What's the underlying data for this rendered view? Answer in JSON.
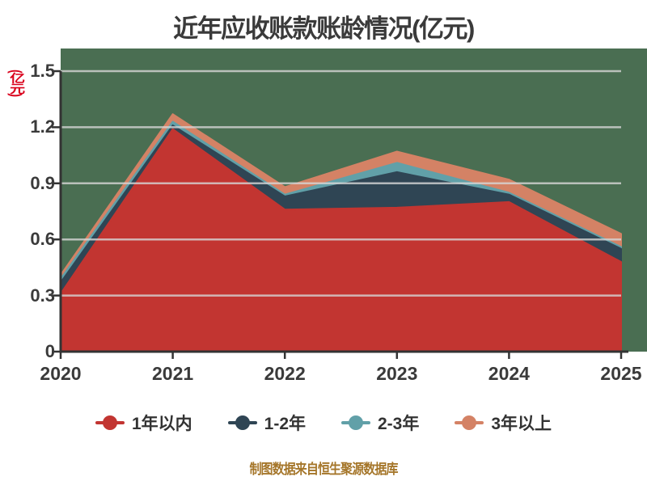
{
  "title": "近年应收账款账龄情况(亿元)",
  "y_axis_unit": "(亿元)",
  "footer": "制图数据来自恒生聚源数据库",
  "colors": {
    "plot_background": "#4a6e52",
    "grid_line": "#d6d6d6",
    "axis": "#333333",
    "title_text": "#3a3a3a",
    "tick_text": "#3a3a3a",
    "unit_text": "#d9001b",
    "footer_text": "#a5762a"
  },
  "chart_data": {
    "type": "area",
    "stacked": true,
    "title": "近年应收账款账龄情况(亿元)",
    "xlabel": "",
    "ylabel": "(亿元)",
    "x": [
      "2020",
      "2021",
      "2022",
      "2023",
      "2024",
      "2025"
    ],
    "series": [
      {
        "name": "1年以内",
        "color": "#c23531",
        "values": [
          0.31,
          1.19,
          0.76,
          0.77,
          0.8,
          0.48
        ]
      },
      {
        "name": "1-2年",
        "color": "#2f4554",
        "values": [
          0.06,
          0.02,
          0.07,
          0.19,
          0.04,
          0.07
        ]
      },
      {
        "name": "2-3年",
        "color": "#61a0a8",
        "values": [
          0.02,
          0.02,
          0.01,
          0.05,
          0.01,
          0.01
        ]
      },
      {
        "name": "3年以上",
        "color": "#d48265",
        "values": [
          0.02,
          0.04,
          0.04,
          0.06,
          0.07,
          0.07
        ]
      }
    ],
    "ylim": [
      0,
      1.5
    ],
    "yticks": [
      0,
      0.3,
      0.6,
      0.9,
      1.2,
      1.5
    ],
    "grid": true,
    "legend_position": "bottom"
  }
}
